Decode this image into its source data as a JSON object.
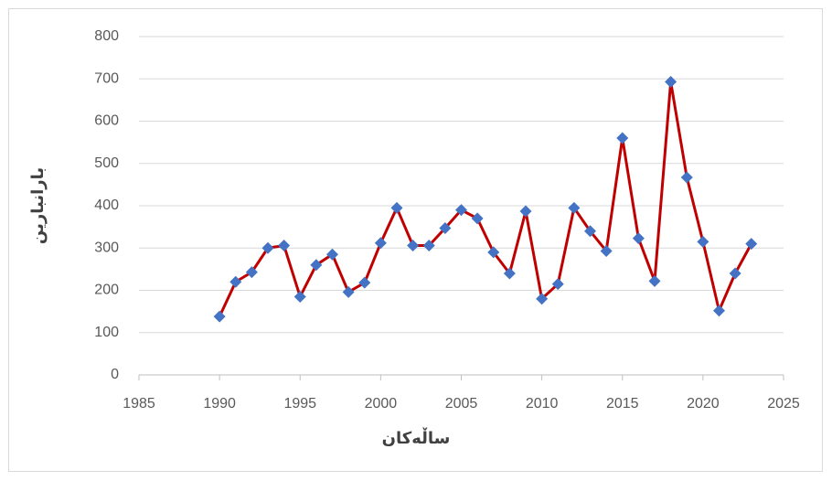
{
  "chart_data": {
    "type": "line",
    "xlabel": "ساڵەکان",
    "ylabel": "بارانبارین",
    "x": [
      1990,
      1991,
      1992,
      1993,
      1994,
      1995,
      1996,
      1997,
      1998,
      1999,
      2000,
      2001,
      2002,
      2003,
      2004,
      2005,
      2006,
      2007,
      2008,
      2009,
      2010,
      2011,
      2012,
      2013,
      2014,
      2015,
      2016,
      2017,
      2018,
      2019,
      2020,
      2021,
      2022,
      2023
    ],
    "series": [
      {
        "color": "#c00000",
        "marker_color": "#4472c4",
        "values": [
          138,
          220,
          243,
          300,
          306,
          185,
          260,
          285,
          196,
          218,
          312,
          395,
          306,
          306,
          347,
          390,
          370,
          290,
          240,
          387,
          180,
          215,
          395,
          340,
          293,
          560,
          323,
          222,
          693,
          467,
          315,
          152,
          240,
          310
        ]
      }
    ],
    "xlim": [
      1985,
      2025
    ],
    "xticks": [
      1985,
      1990,
      1995,
      2000,
      2005,
      2010,
      2015,
      2020,
      2025
    ],
    "ylim": [
      0,
      800
    ],
    "yticks": [
      0,
      100,
      200,
      300,
      400,
      500,
      600,
      700,
      800
    ],
    "grid": true
  }
}
